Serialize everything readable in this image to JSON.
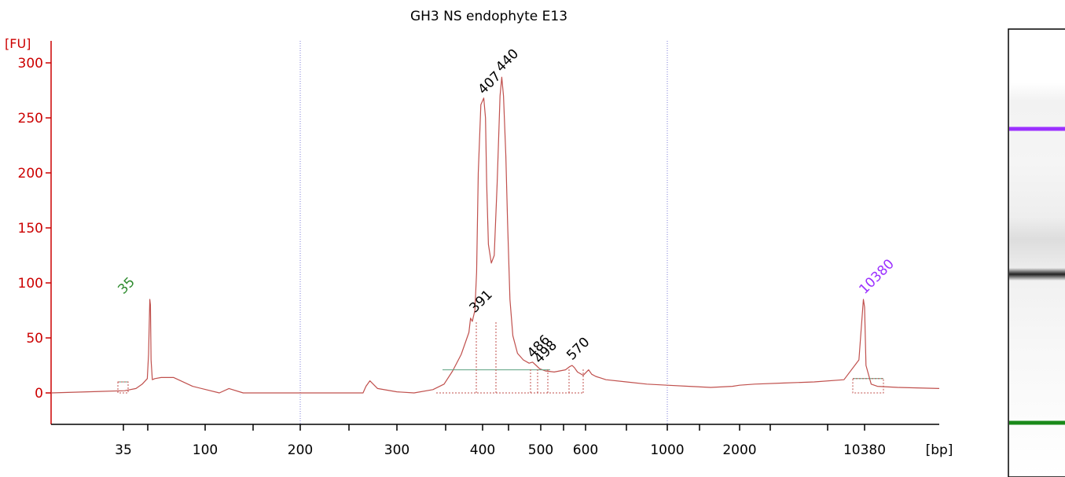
{
  "chart_data": {
    "type": "line",
    "title": "GH3 NS endophyte E13",
    "ylabel": "[FU]",
    "xlabel": "[bp]",
    "ylim": [
      -30,
      310
    ],
    "y_ticks": [
      0,
      50,
      100,
      150,
      200,
      250,
      300
    ],
    "x_axis": {
      "scale": "categorical-ladder",
      "tick_labels": [
        "35",
        "100",
        "200",
        "300",
        "400",
        "500",
        "600",
        "1000",
        "2000",
        "10380"
      ],
      "minor_ticks_unlabeled": true
    },
    "grid": "dotted vertical lines at 200 and 1000",
    "series": [
      {
        "x": [
          0,
          36,
          45,
          50,
          54,
          55,
          56,
          56.5,
          57,
          58,
          60,
          65,
          75,
          90,
          115,
          125,
          140,
          160,
          175,
          185,
          198,
          200,
          218,
          240,
          265,
          268,
          272,
          280,
          300,
          320,
          342,
          355,
          365,
          375,
          384,
          386,
          388,
          391,
          393,
          395,
          398,
          402,
          405,
          407,
          410,
          415,
          420,
          425,
          430,
          433,
          436,
          440,
          443,
          447,
          452,
          460,
          470,
          480,
          486,
          492,
          498,
          510,
          530,
          555,
          565,
          570,
          575,
          582,
          595,
          615,
          630,
          650,
          700,
          800,
          900,
          1000,
          1300,
          1600,
          1900,
          2000,
          3000,
          5000,
          7000,
          9000,
          10000,
          10300,
          10380,
          10450,
          10700,
          11000,
          12000,
          14000
        ],
        "values": [
          0,
          2,
          4,
          8,
          13,
          35,
          85,
          80,
          30,
          12,
          13,
          14,
          14,
          6,
          0,
          4,
          0,
          0,
          0,
          0,
          0,
          0,
          0,
          0,
          0,
          6,
          11,
          4,
          1,
          0,
          3,
          8,
          20,
          35,
          55,
          68,
          65,
          75,
          110,
          200,
          262,
          268,
          250,
          190,
          135,
          118,
          125,
          190,
          270,
          287,
          270,
          215,
          155,
          85,
          52,
          36,
          30,
          27,
          28,
          25,
          22,
          20,
          19,
          21,
          24,
          25,
          23,
          19,
          16,
          21,
          17,
          15,
          12,
          10,
          8,
          7,
          6,
          5,
          6,
          7,
          8,
          9,
          10,
          12,
          30,
          85,
          78,
          25,
          8,
          6,
          5,
          4
        ],
        "color": "#c0504d"
      }
    ],
    "peak_labels": [
      {
        "bp": "35",
        "fu": 85,
        "color": "#2e8b2e"
      },
      {
        "bp": "391",
        "fu": 68,
        "color": "#000000"
      },
      {
        "bp": "407",
        "fu": 268,
        "color": "#000000"
      },
      {
        "bp": "440",
        "fu": 287,
        "color": "#000000"
      },
      {
        "bp": "486",
        "fu": 27,
        "color": "#000000"
      },
      {
        "bp": "498",
        "fu": 22,
        "color": "#000000"
      },
      {
        "bp": "570",
        "fu": 25,
        "color": "#000000"
      },
      {
        "bp": "10380",
        "fu": 85,
        "color": "#9b30ff"
      }
    ],
    "gel_lane": {
      "bands": [
        {
          "type": "upper-marker",
          "color": "#9b30ff"
        },
        {
          "type": "sample",
          "color": "#222222"
        },
        {
          "type": "lower-marker",
          "color": "#1a8a1a"
        }
      ]
    }
  }
}
